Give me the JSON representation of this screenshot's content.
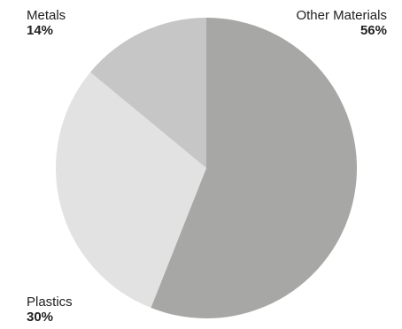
{
  "chart_data": {
    "type": "pie",
    "title": "",
    "slices": [
      {
        "label": "Other Materials",
        "value": 56,
        "display": "56%",
        "color": "#a7a7a5"
      },
      {
        "label": "Plastics",
        "value": 30,
        "display": "30%",
        "color": "#e2e2e2"
      },
      {
        "label": "Metals",
        "value": 14,
        "display": "14%",
        "color": "#c6c6c6"
      }
    ],
    "start_position": "top (12 o'clock)",
    "direction": "clockwise",
    "legend": "none (direct labels)"
  }
}
